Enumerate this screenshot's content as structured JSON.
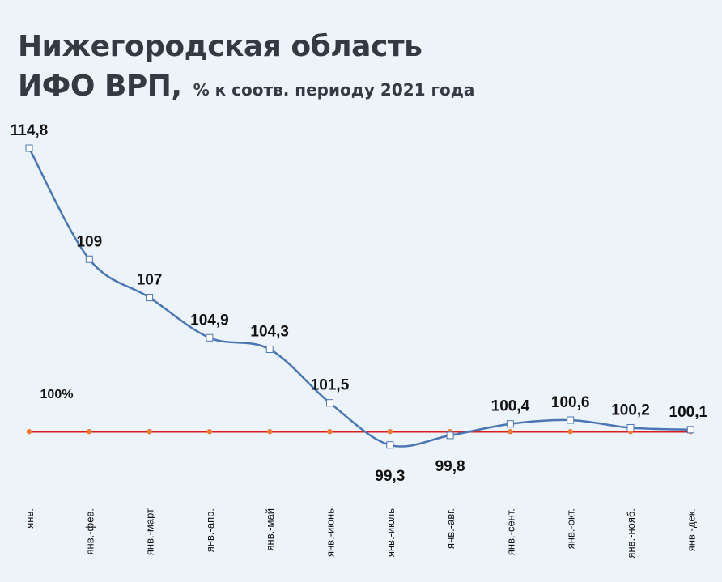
{
  "title": {
    "line1": "Нижегородская область",
    "line2_main": "ИФО ВРП,",
    "line2_sub": "% к соотв. периоду 2021 года"
  },
  "chart_data": {
    "type": "line",
    "categories": [
      "янв.",
      "янв.-фев.",
      "янв.-март",
      "янв.-апр.",
      "янв.-май",
      "янв.-июнь",
      "янв.-июль",
      "янв.-авг.",
      "янв.-сент.",
      "янв.-окт.",
      "янв.-нояб.",
      "янв.-дек."
    ],
    "series": [
      {
        "values": [
          114.8,
          109,
          107,
          104.9,
          104.3,
          101.5,
          99.3,
          99.8,
          100.4,
          100.6,
          100.2,
          100.1
        ],
        "labels": [
          "114,8",
          "109",
          "107",
          "104,9",
          "104,3",
          "101,5",
          "99,3",
          "99,8",
          "100,4",
          "100,6",
          "100,2",
          "100,1"
        ],
        "color": "#4a76b4"
      },
      {
        "values": [
          100,
          100,
          100,
          100,
          100,
          100,
          100,
          100,
          100,
          100,
          100,
          100
        ],
        "color": "#d81e1e",
        "marker_color": "#f07a30"
      }
    ],
    "baseline_label": "100%",
    "ylim": [
      96.5,
      120
    ],
    "grid": false,
    "legend": "none",
    "colors": {
      "background": "#edf4f9",
      "title": "#333a41"
    }
  }
}
